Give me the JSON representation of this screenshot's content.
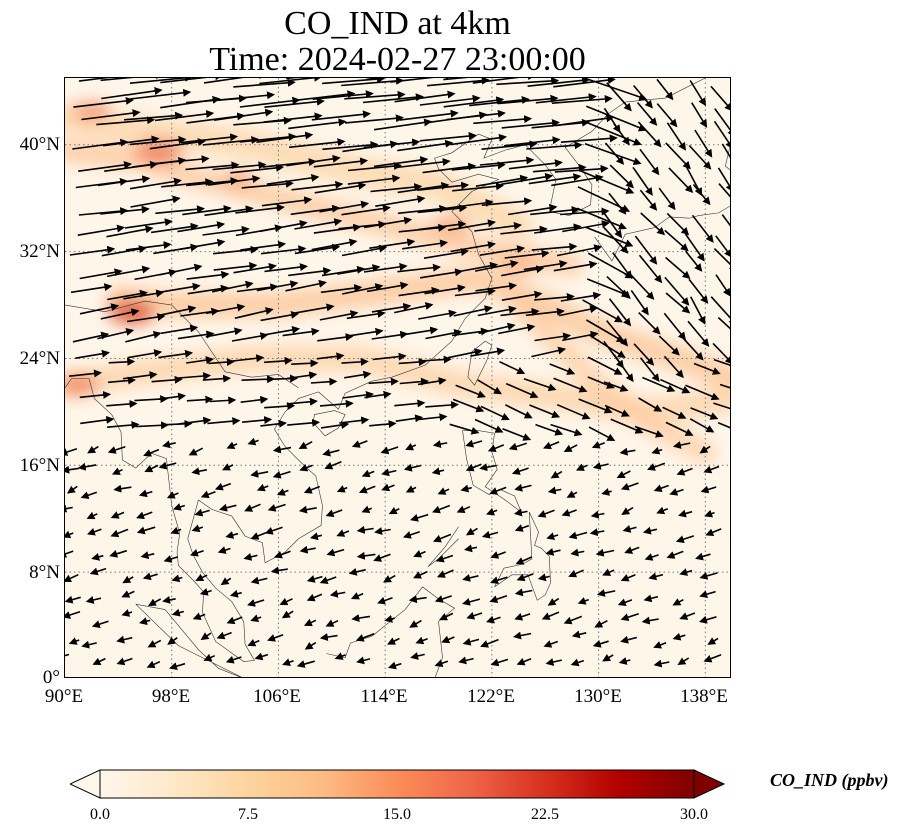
{
  "title": "CO_IND at 4km",
  "subtitle": "Time: 2024-02-27 23:00:00",
  "lat_ticks": [
    "40°N",
    "32°N",
    "24°N",
    "16°N",
    "8°N",
    "0°"
  ],
  "lon_ticks": [
    "90°E",
    "98°E",
    "106°E",
    "114°E",
    "122°E",
    "130°E",
    "138°E"
  ],
  "colorbar": {
    "label": "CO_IND (ppbv)",
    "ticks": [
      "0.0",
      "7.5",
      "15.0",
      "22.5",
      "30.0"
    ],
    "colormap": "OrRd",
    "colors": [
      "#fff7ec",
      "#fee8c8",
      "#fdd49e",
      "#fdbb84",
      "#fc8d59",
      "#ef6548",
      "#d7301f",
      "#b30000",
      "#7f0000"
    ]
  },
  "map": {
    "lon_range": [
      90,
      140
    ],
    "lat_range": [
      0,
      45
    ],
    "gridlines": "dotted",
    "background_color": "#fff6ea"
  }
}
